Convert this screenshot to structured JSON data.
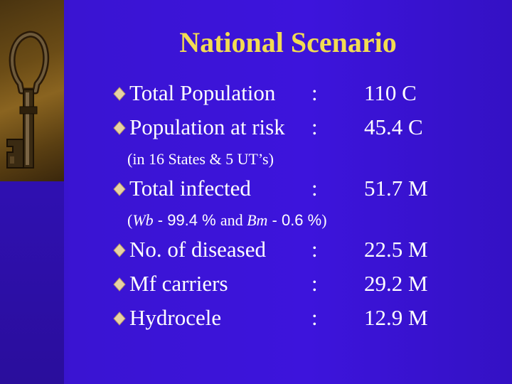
{
  "title": "National Scenario",
  "rows": [
    {
      "label": "Total Population",
      "colon": ":",
      "value": "110 C"
    },
    {
      "label": "Population at risk",
      "colon": ":",
      "value": "45.4 C"
    },
    {
      "label": "Total infected",
      "colon": ":",
      "value": "51.7 M"
    },
    {
      "label": "No. of diseased",
      "colon": ":",
      "value": "22.5 M"
    },
    {
      "label": "Mf carriers",
      "colon": ":",
      "value": "29.2 M"
    },
    {
      "label": "Hydrocele",
      "colon": ":",
      "value": "12.9 M"
    }
  ],
  "notes": {
    "states": "(in 16 States & 5 UT’s)",
    "species": {
      "open": "(",
      "wb": "Wb",
      "wb_value": " - 99.4 % ",
      "and": "and ",
      "bm": "Bm",
      "bm_value": " - 0.6 %",
      "close": ")"
    }
  },
  "icons": {
    "bullet": "diamond-bullet-icon",
    "decoration": "key-icon"
  },
  "colors": {
    "background": "#3a14d2",
    "title": "#f2dc52",
    "text": "#ffffff",
    "bullet": "#e7d2a4"
  }
}
